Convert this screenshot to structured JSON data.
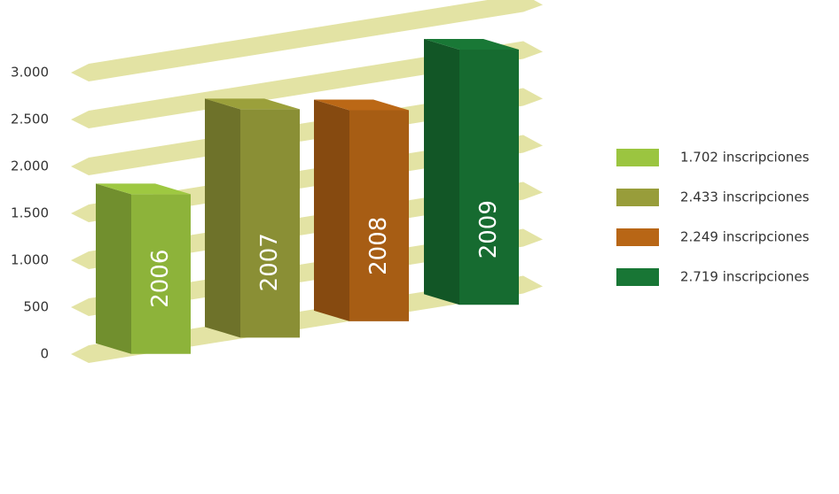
{
  "chart_data": {
    "type": "bar3d",
    "categories": [
      "2006",
      "2007",
      "2008",
      "2009"
    ],
    "values": [
      1702,
      2433,
      2249,
      2719
    ],
    "value_labels": [
      "1.702 inscripciones",
      "2.433 inscripciones",
      "2.249 inscripciones",
      "2.719 inscripciones"
    ],
    "colors": [
      "#8db33a",
      "#8a8f35",
      "#a75d14",
      "#166b30"
    ],
    "ylim": [
      0,
      3500
    ],
    "yticks": [
      0,
      500,
      {
        "value": 1000,
        "label": "1.000"
      },
      {
        "value": 1500,
        "label": "1.500"
      },
      {
        "value": 2000,
        "label": "2.000"
      },
      {
        "value": 2500,
        "label": "2.500"
      },
      {
        "value": 3000,
        "label": "3.000"
      }
    ],
    "grid": true
  }
}
